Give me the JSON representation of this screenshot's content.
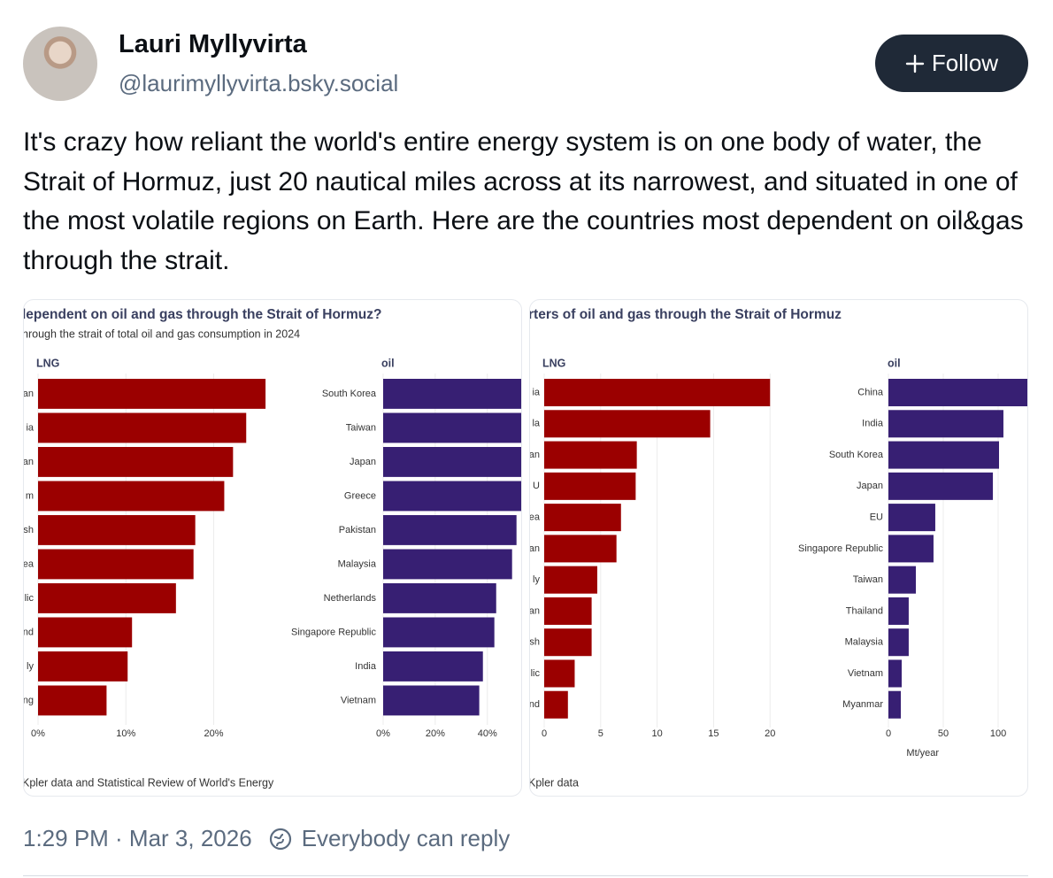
{
  "post": {
    "author": "Lauri Myllyvirta",
    "handle": "@laurimyllyvirta.bsky.social",
    "follow": "Follow",
    "text": "It's crazy how reliant the world's entire energy system is on one body of water, the Strait of Hormuz, just 20 nautical miles across at its narrowest, and situated in one of the most volatile regions on Earth. Here are the countries most dependent on oil&gas through the strait.",
    "timestamp": "1:29 PM · Mar 3, 2026",
    "reply": "Everybody can reply"
  },
  "chart_data": [
    {
      "type": "bar",
      "orientation": "horizontal",
      "title": "lependent on oil and gas through the Strait of Hormuz?",
      "subtitle": "hrough the strait of total oil and gas consumption in 2024",
      "caption": "Kpler data and Statistical Review of World's Energy",
      "grid": true,
      "panels": [
        {
          "title": "LNG",
          "color": "#9b0000",
          "categories": [
            "an",
            "ia",
            "an",
            "m",
            "sh",
            "ea",
            "lic",
            "nd",
            "ly",
            "ng"
          ],
          "values": [
            25.9,
            23.7,
            22.2,
            21.2,
            17.9,
            17.7,
            15.7,
            10.7,
            10.2,
            7.8
          ],
          "xlim": [
            0,
            27
          ],
          "xticks": [
            {
              "value": 0,
              "label": "0%"
            },
            {
              "value": 10,
              "label": "10%"
            },
            {
              "value": 20,
              "label": "20%"
            }
          ]
        },
        {
          "title": "oil",
          "color": "#371f73",
          "categories": [
            "South Korea",
            "Taiwan",
            "Japan",
            "Greece",
            "Pakistan",
            "Malaysia",
            "Netherlands",
            "Singapore Republic",
            "India",
            "Vietnam"
          ],
          "values": [
            53,
            53,
            53,
            53,
            51.2,
            49.5,
            43.4,
            42.7,
            38.3,
            36.9
          ],
          "xlim": [
            0,
            53
          ],
          "xticks": [
            {
              "value": 0,
              "label": "0%"
            },
            {
              "value": 20,
              "label": "20%"
            },
            {
              "value": 40,
              "label": "40%"
            }
          ]
        }
      ]
    },
    {
      "type": "bar",
      "orientation": "horizontal",
      "title": "rters of oil and gas through the Strait of Hormuz",
      "caption": "Kpler data",
      "grid": true,
      "panels": [
        {
          "title": "LNG",
          "color": "#9b0000",
          "categories": [
            "ia",
            "la",
            "an",
            "U",
            "ea",
            "an",
            "ly",
            "an",
            "sh",
            "lic",
            "nd"
          ],
          "values": [
            20.0,
            14.7,
            8.2,
            8.1,
            6.8,
            6.4,
            4.7,
            4.2,
            4.2,
            2.7,
            2.1
          ],
          "xlim": [
            0,
            21
          ],
          "xticks": [
            0,
            5,
            10,
            15,
            20
          ]
        },
        {
          "title": "oil",
          "color": "#371f73",
          "xlabel": "Mt/year",
          "categories": [
            "China",
            "India",
            "South Korea",
            "Japan",
            "EU",
            "Singapore Republic",
            "Taiwan",
            "Thailand",
            "Malaysia",
            "Vietnam",
            "Myanmar"
          ],
          "values": [
            127,
            104.8,
            100.8,
            95.2,
            42.7,
            41.1,
            25,
            18.5,
            18.5,
            12.1,
            11.3
          ],
          "xlim": [
            0,
            127
          ],
          "xticks": [
            0,
            50,
            100
          ]
        }
      ]
    }
  ]
}
